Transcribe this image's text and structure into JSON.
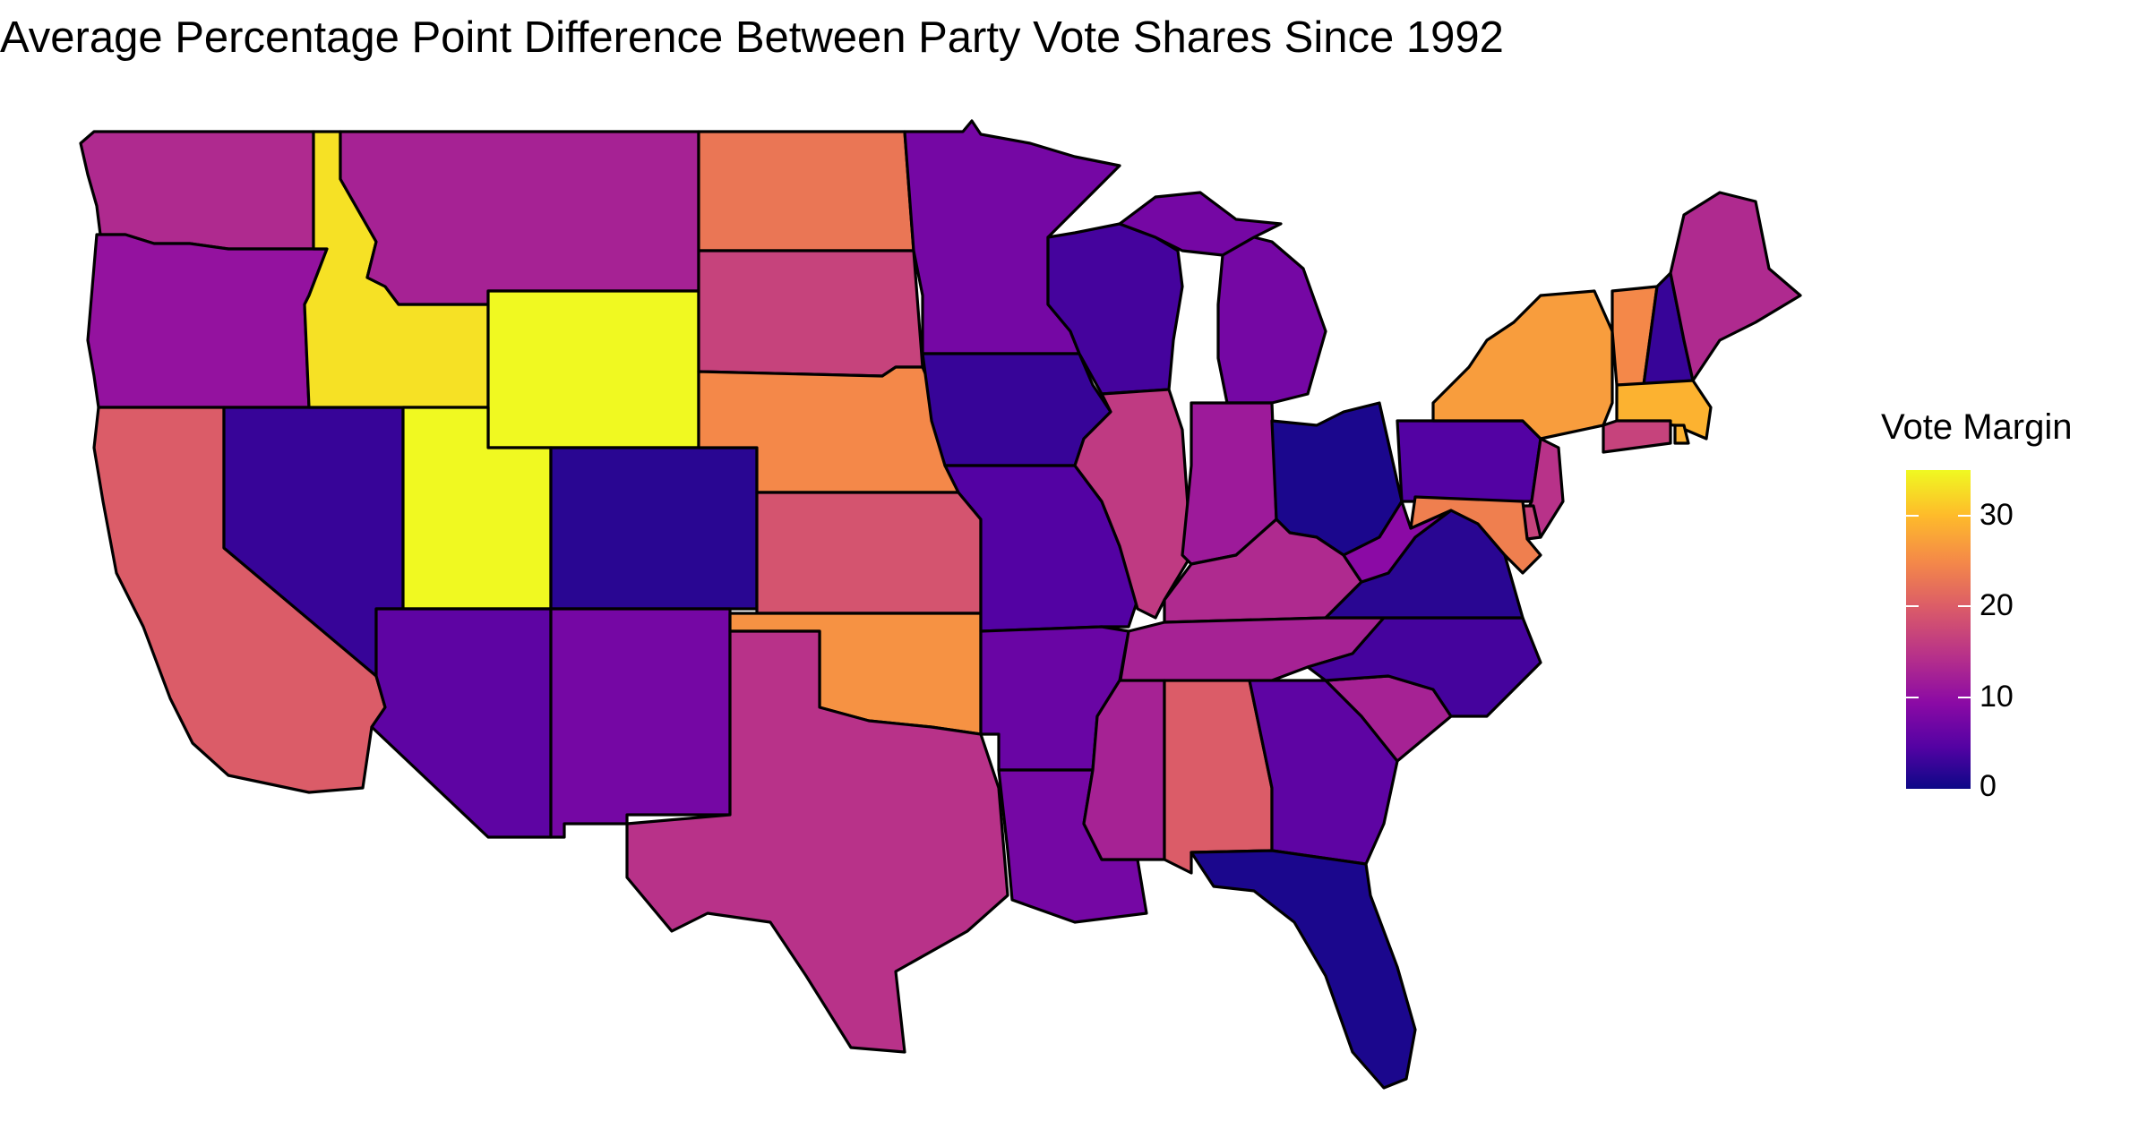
{
  "title": "Average Percentage Point Difference Between Party Vote Shares Since 1992",
  "legend": {
    "title": "Vote Margin",
    "ticks": [
      "30",
      "20",
      "10",
      "0"
    ],
    "colors": [
      "#0d0887",
      "#5302a3",
      "#8b0aa5",
      "#b83289",
      "#db5c68",
      "#f48849",
      "#febc2a",
      "#f0f921"
    ]
  },
  "chart_data": {
    "type": "choropleth",
    "title": "Average Percentage Point Difference Between Party Vote Shares Since 1992",
    "fill_label": "Vote Margin",
    "scale": {
      "min": 0,
      "max": 35,
      "palette": "plasma",
      "ticks": [
        0,
        10,
        20,
        30
      ]
    },
    "values": {
      "WA": 14,
      "OR": 11,
      "CA": 20,
      "NV": 3,
      "ID": 33,
      "MT": 13,
      "WY": 36,
      "UT": 38,
      "AZ": 6,
      "CO": 2,
      "NM": 8,
      "ND": 23,
      "SD": 17,
      "NE": 25,
      "KS": 19,
      "OK": 26,
      "TX": 15,
      "MN": 8,
      "IA": 3,
      "MO": 5,
      "AR": 7,
      "LA": 8,
      "WI": 4,
      "IL": 16,
      "MI": 8,
      "IN": 12,
      "OH": 1,
      "KY": 14,
      "TN": 13,
      "MS": 13,
      "AL": 20,
      "GA": 6,
      "FL": 1,
      "SC": 13,
      "NC": 4,
      "VA": 2,
      "WV": 10,
      "PA": 5,
      "NY": 27,
      "VT": 25,
      "NH": 3,
      "ME": 14,
      "MA": 29,
      "RI": 29,
      "CT": 17,
      "NJ": 15,
      "DE": 17,
      "MD": 24
    }
  }
}
